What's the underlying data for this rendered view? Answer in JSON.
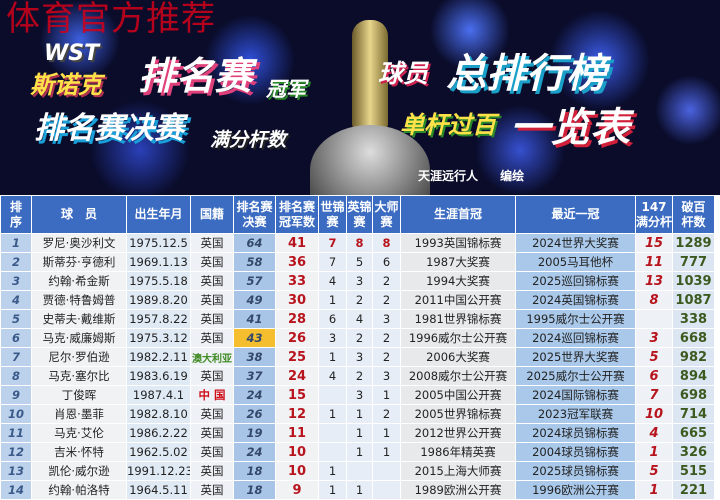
{
  "watermark": "体育官方推荐",
  "banner": {
    "logo": "WST",
    "line1a": "斯诺克",
    "line1b": "排名赛",
    "line1c": "冠军",
    "line1d": "球员",
    "line1e": "总排行榜",
    "line2a": "排名赛决赛",
    "line2b": "满分杆数",
    "line2c": "单杆过百",
    "line2d": "一览表",
    "credit": "天涯远行人 编绘"
  },
  "colors": {
    "header": "#3b6cc2",
    "highlight": "#f5be2e",
    "red": "#b8141e",
    "green": "#3c5a20"
  },
  "table": {
    "headers": [
      "排\n序",
      "球　员",
      "出生年月",
      "国籍",
      "排名赛\n决赛",
      "排名赛\n冠军数",
      "世锦\n赛",
      "英锦\n赛",
      "大师\n赛",
      "生涯首冠",
      "最近一冠",
      "147\n满分杆",
      "破百\n杆数"
    ],
    "rows": [
      [
        "1",
        "罗尼·奥沙利文",
        "1975.12.5",
        "英国",
        "64",
        "41",
        "7",
        "8",
        "8",
        "1993英国锦标赛",
        "2024世界大奖赛",
        "15",
        "1289"
      ],
      [
        "2",
        "斯蒂芬·亨德利",
        "1969.1.13",
        "英国",
        "58",
        "36",
        "7",
        "5",
        "6",
        "1987大奖赛",
        "2005马耳他杯",
        "11",
        "777"
      ],
      [
        "3",
        "约翰·希金斯",
        "1975.5.18",
        "英国",
        "57",
        "33",
        "4",
        "3",
        "2",
        "1994大奖赛",
        "2025巡回锦标赛",
        "13",
        "1039"
      ],
      [
        "4",
        "贾德·特鲁姆普",
        "1989.8.20",
        "英国",
        "49",
        "30",
        "1",
        "2",
        "2",
        "2011中国公开赛",
        "2024英国锦标赛",
        "8",
        "1087"
      ],
      [
        "5",
        "史蒂夫·戴维斯",
        "1957.8.22",
        "英国",
        "41",
        "28",
        "6",
        "4",
        "3",
        "1981世界锦标赛",
        "1995威尔士公开赛",
        "",
        "338"
      ],
      [
        "6",
        "马克·威廉姆斯",
        "1975.3.12",
        "英国",
        "43",
        "26",
        "3",
        "2",
        "2",
        "1996威尔士公开赛",
        "2024巡回锦标赛",
        "3",
        "668"
      ],
      [
        "7",
        "尼尔·罗伯逊",
        "1982.2.11",
        "澳大利亚",
        "38",
        "25",
        "1",
        "3",
        "2",
        "2006大奖赛",
        "2025世界大奖赛",
        "5",
        "982"
      ],
      [
        "8",
        "马克·塞尔比",
        "1983.6.19",
        "英国",
        "37",
        "24",
        "4",
        "2",
        "3",
        "2008威尔士公开赛",
        "2025威尔士公开赛",
        "6",
        "894"
      ],
      [
        "9",
        "丁俊晖",
        "1987.4.1",
        "中 国",
        "24",
        "15",
        "",
        "3",
        "1",
        "2005中国公开赛",
        "2024国际锦标赛",
        "7",
        "698"
      ],
      [
        "10",
        "肖恩·墨菲",
        "1982.8.10",
        "英国",
        "26",
        "12",
        "1",
        "1",
        "2",
        "2005世界锦标赛",
        "2023冠军联赛",
        "10",
        "714"
      ],
      [
        "11",
        "马克·艾伦",
        "1986.2.22",
        "英国",
        "19",
        "11",
        "",
        "1",
        "1",
        "2012世界公开赛",
        "2024球员锦标赛",
        "4",
        "665"
      ],
      [
        "12",
        "吉米·怀特",
        "1962.5.02",
        "英国",
        "24",
        "10",
        "",
        "1",
        "1",
        "1986年精英赛",
        "2004球员锦标赛",
        "1",
        "326"
      ],
      [
        "13",
        "凯伦·威尔逊",
        "1991.12.23",
        "英国",
        "18",
        "10",
        "1",
        "",
        "",
        "2015上海大师赛",
        "2025球员锦标赛",
        "5",
        "515"
      ],
      [
        "14",
        "约翰·帕洛特",
        "1964.5.11",
        "英国",
        "18",
        "9",
        "1",
        "1",
        "",
        "1989欧洲公开赛",
        "1996欧洲公开赛",
        "1",
        "221"
      ]
    ]
  }
}
